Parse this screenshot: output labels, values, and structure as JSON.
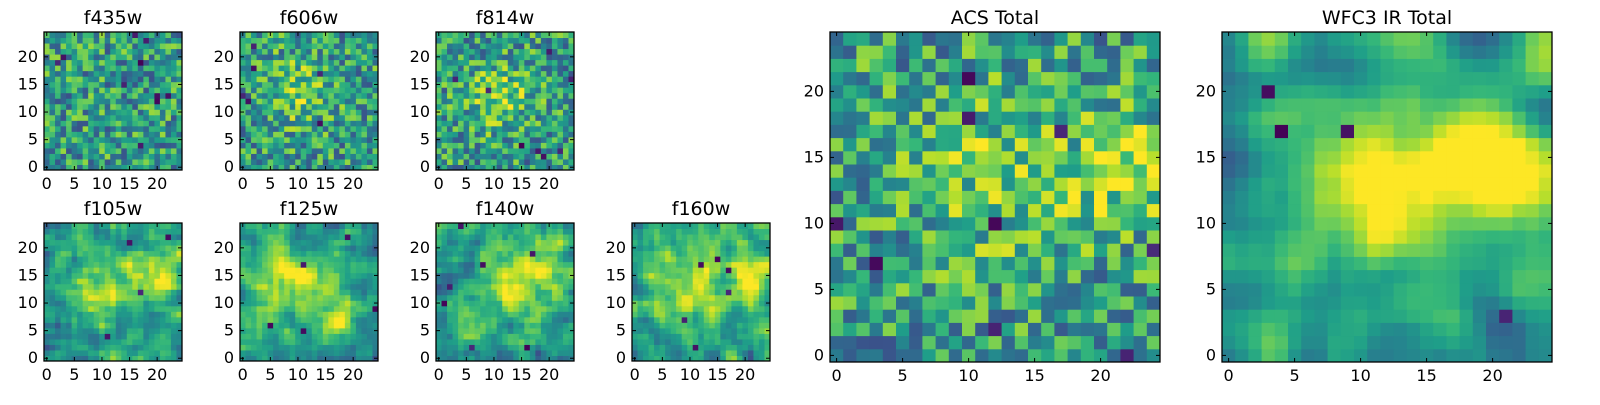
{
  "figure": {
    "panels": [
      {
        "id": "f435w",
        "title": "f435w",
        "seed": 11,
        "smooth": 0,
        "blobs": [],
        "holes": 10
      },
      {
        "id": "f606w",
        "title": "f606w",
        "seed": 23,
        "smooth": 0,
        "blobs": [
          {
            "cx": 10,
            "cy": 14,
            "r": 4,
            "a": 0.25
          }
        ],
        "holes": 6
      },
      {
        "id": "f814w",
        "title": "f814w",
        "seed": 37,
        "smooth": 0,
        "blobs": [
          {
            "cx": 11,
            "cy": 13,
            "r": 4,
            "a": 0.25
          }
        ],
        "holes": 8
      },
      {
        "id": "f105w",
        "title": "f105w",
        "seed": 41,
        "smooth": 1,
        "blobs": [
          {
            "cx": 11,
            "cy": 13,
            "r": 5,
            "a": 0.35
          },
          {
            "cx": 21,
            "cy": 15,
            "r": 3,
            "a": 0.35
          }
        ],
        "holes": 4
      },
      {
        "id": "f125w",
        "title": "f125w",
        "seed": 53,
        "smooth": 1,
        "blobs": [
          {
            "cx": 9,
            "cy": 15,
            "r": 4,
            "a": 0.35
          },
          {
            "cx": 17,
            "cy": 9,
            "r": 3,
            "a": 0.3
          }
        ],
        "holes": 5
      },
      {
        "id": "f140w",
        "title": "f140w",
        "seed": 67,
        "smooth": 1,
        "blobs": [
          {
            "cx": 13,
            "cy": 14,
            "r": 4,
            "a": 0.35
          },
          {
            "cx": 20,
            "cy": 16,
            "r": 3,
            "a": 0.3
          }
        ],
        "holes": 7
      },
      {
        "id": "f160w",
        "title": "f160w",
        "seed": 79,
        "smooth": 1,
        "blobs": [
          {
            "cx": 10,
            "cy": 13,
            "r": 5,
            "a": 0.35
          },
          {
            "cx": 21,
            "cy": 15,
            "r": 3,
            "a": 0.35
          }
        ],
        "holes": 6
      },
      {
        "id": "acs_total",
        "title": "ACS Total",
        "seed": 97,
        "smooth": 0,
        "blobs": [
          {
            "cx": 12,
            "cy": 14,
            "r": 5,
            "a": 0.2
          },
          {
            "cx": 22,
            "cy": 14,
            "r": 3,
            "a": 0.25
          }
        ],
        "holes": 9
      },
      {
        "id": "wfc3_ir_total",
        "title": "WFC3 IR Total",
        "seed": 113,
        "smooth": 2,
        "blobs": [
          {
            "cx": 12,
            "cy": 13,
            "r": 5,
            "a": 0.45
          },
          {
            "cx": 21,
            "cy": 15,
            "r": 3,
            "a": 0.5
          }
        ],
        "holes": 4
      }
    ]
  },
  "chart_data": [
    {
      "type": "heatmap",
      "title": "f435w",
      "xlim": [
        0,
        24
      ],
      "ylim": [
        0,
        24
      ],
      "xticks": [
        0,
        5,
        10,
        15,
        20
      ],
      "yticks": [
        0,
        5,
        10,
        15,
        20
      ],
      "colormap": "viridis",
      "grid": false
    },
    {
      "type": "heatmap",
      "title": "f606w",
      "xlim": [
        0,
        24
      ],
      "ylim": [
        0,
        24
      ],
      "xticks": [
        0,
        5,
        10,
        15,
        20
      ],
      "yticks": [
        0,
        5,
        10,
        15,
        20
      ],
      "colormap": "viridis",
      "grid": false
    },
    {
      "type": "heatmap",
      "title": "f814w",
      "xlim": [
        0,
        24
      ],
      "ylim": [
        0,
        24
      ],
      "xticks": [
        0,
        5,
        10,
        15,
        20
      ],
      "yticks": [
        0,
        5,
        10,
        15,
        20
      ],
      "colormap": "viridis",
      "grid": false
    },
    {
      "type": "heatmap",
      "title": "f105w",
      "xlim": [
        0,
        24
      ],
      "ylim": [
        0,
        24
      ],
      "xticks": [
        0,
        5,
        10,
        15,
        20
      ],
      "yticks": [
        0,
        5,
        10,
        15,
        20
      ],
      "colormap": "viridis",
      "grid": false
    },
    {
      "type": "heatmap",
      "title": "f125w",
      "xlim": [
        0,
        24
      ],
      "ylim": [
        0,
        24
      ],
      "xticks": [
        0,
        5,
        10,
        15,
        20
      ],
      "yticks": [
        0,
        5,
        10,
        15,
        20
      ],
      "colormap": "viridis",
      "grid": false
    },
    {
      "type": "heatmap",
      "title": "f140w",
      "xlim": [
        0,
        24
      ],
      "ylim": [
        0,
        24
      ],
      "xticks": [
        0,
        5,
        10,
        15,
        20
      ],
      "yticks": [
        0,
        5,
        10,
        15,
        20
      ],
      "colormap": "viridis",
      "grid": false
    },
    {
      "type": "heatmap",
      "title": "f160w",
      "xlim": [
        0,
        24
      ],
      "ylim": [
        0,
        24
      ],
      "xticks": [
        0,
        5,
        10,
        15,
        20
      ],
      "yticks": [
        0,
        5,
        10,
        15,
        20
      ],
      "colormap": "viridis",
      "grid": false
    },
    {
      "type": "heatmap",
      "title": "ACS Total",
      "xlim": [
        0,
        24
      ],
      "ylim": [
        0,
        24
      ],
      "xticks": [
        0,
        5,
        10,
        15,
        20
      ],
      "yticks": [
        0,
        5,
        10,
        15,
        20
      ],
      "colormap": "viridis",
      "grid": false
    },
    {
      "type": "heatmap",
      "title": "WFC3 IR Total",
      "xlim": [
        0,
        24
      ],
      "ylim": [
        0,
        24
      ],
      "xticks": [
        0,
        5,
        10,
        15,
        20
      ],
      "yticks": [
        0,
        5,
        10,
        15,
        20
      ],
      "colormap": "viridis",
      "grid": false
    }
  ]
}
